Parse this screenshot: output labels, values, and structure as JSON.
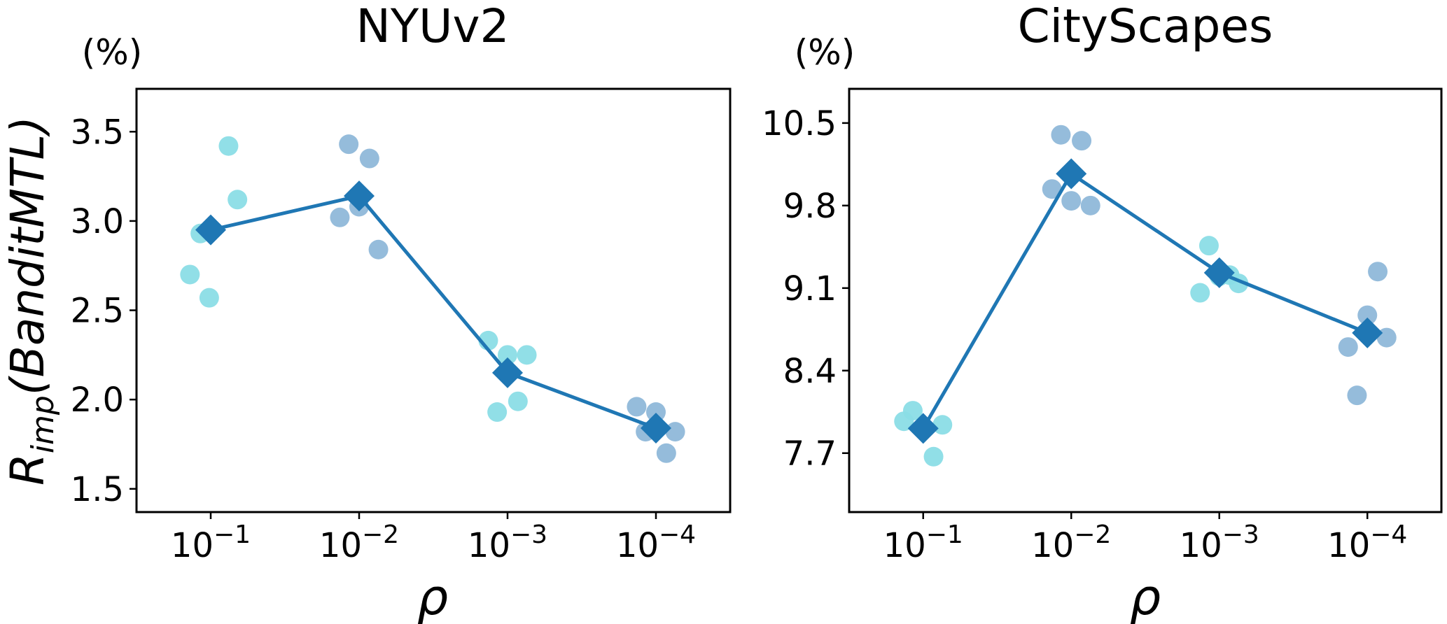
{
  "y_axis_label": {
    "main": "R",
    "sub": "imp",
    "rest": "(BanditMTL)"
  },
  "colors": {
    "line": "#1f77b4",
    "cyan": "#8bdde6",
    "blue": "#8fb8d9"
  },
  "chart_data": [
    {
      "type": "line+scatter",
      "title": "NYUv2",
      "unit_label": "(%)",
      "xlabel": "ρ",
      "categories": [
        "10^-1",
        "10^-2",
        "10^-3",
        "10^-4"
      ],
      "tick_base": "10",
      "tick_exponents": [
        "−1",
        "−2",
        "−3",
        "−4"
      ],
      "yticks": [
        "1.5",
        "2.0",
        "2.5",
        "3.0",
        "3.5"
      ],
      "ytick_values": [
        1.5,
        2.0,
        2.5,
        3.0,
        3.5
      ],
      "ylim": [
        1.37,
        3.74
      ],
      "mean_series": [
        2.95,
        3.14,
        2.15,
        1.84
      ],
      "runs": [
        [
          3.42,
          3.12,
          2.93,
          2.7,
          2.57
        ],
        [
          3.43,
          3.35,
          3.08,
          3.02,
          2.84
        ],
        [
          2.33,
          2.25,
          2.25,
          1.99,
          1.93
        ],
        [
          1.96,
          1.93,
          1.82,
          1.82,
          1.7
        ]
      ],
      "run_offsets": [
        [
          0.12,
          0.18,
          -0.07,
          -0.14,
          -0.01
        ],
        [
          -0.07,
          0.07,
          0.0,
          -0.13,
          0.13
        ],
        [
          -0.13,
          0.0,
          0.13,
          0.07,
          -0.07
        ],
        [
          -0.13,
          0.0,
          -0.07,
          0.13,
          0.07
        ]
      ]
    },
    {
      "type": "line+scatter",
      "title": "CityScapes",
      "unit_label": "(%)",
      "xlabel": "ρ",
      "categories": [
        "10^-1",
        "10^-2",
        "10^-3",
        "10^-4"
      ],
      "tick_base": "10",
      "tick_exponents": [
        "−1",
        "−2",
        "−3",
        "−4"
      ],
      "yticks": [
        "7.7",
        "8.4",
        "9.1",
        "9.8",
        "10.5"
      ],
      "ytick_values": [
        7.7,
        8.4,
        9.1,
        9.8,
        10.5
      ],
      "ylim": [
        7.2,
        10.79
      ],
      "mean_series": [
        7.91,
        10.07,
        9.23,
        8.72
      ],
      "runs": [
        [
          7.97,
          8.06,
          7.94,
          7.67,
          7.91
        ],
        [
          10.4,
          10.35,
          9.94,
          9.84,
          9.8
        ],
        [
          9.46,
          9.06,
          9.21,
          9.2,
          9.14
        ],
        [
          9.24,
          8.87,
          8.68,
          8.6,
          8.19
        ]
      ],
      "run_offsets": [
        [
          -0.13,
          -0.07,
          0.13,
          0.07,
          0.0
        ],
        [
          -0.07,
          0.07,
          -0.13,
          0.0,
          0.13
        ],
        [
          -0.07,
          -0.13,
          0.07,
          0.0,
          0.13
        ],
        [
          0.07,
          0.0,
          0.13,
          -0.13,
          -0.07
        ]
      ]
    }
  ]
}
